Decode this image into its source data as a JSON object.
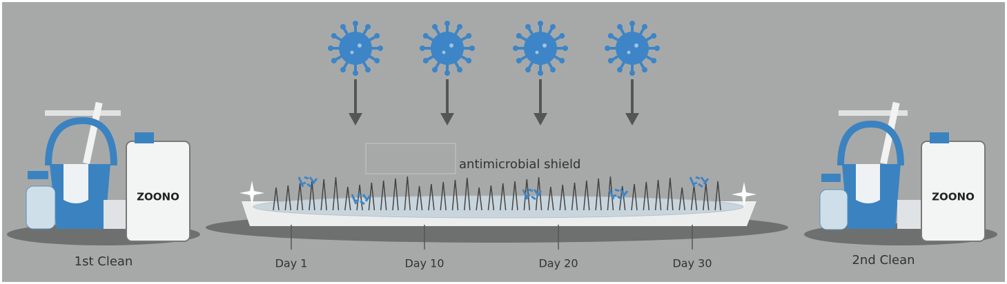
{
  "left_station": {
    "label": "1st Clean",
    "brand": "ZOONO"
  },
  "right_station": {
    "label": "2nd Clean",
    "brand": "ZOONO"
  },
  "shield_label": "antimicrobial shield",
  "timeline": [
    "Day 1",
    "Day 10",
    "Day 20",
    "Day 30"
  ]
}
